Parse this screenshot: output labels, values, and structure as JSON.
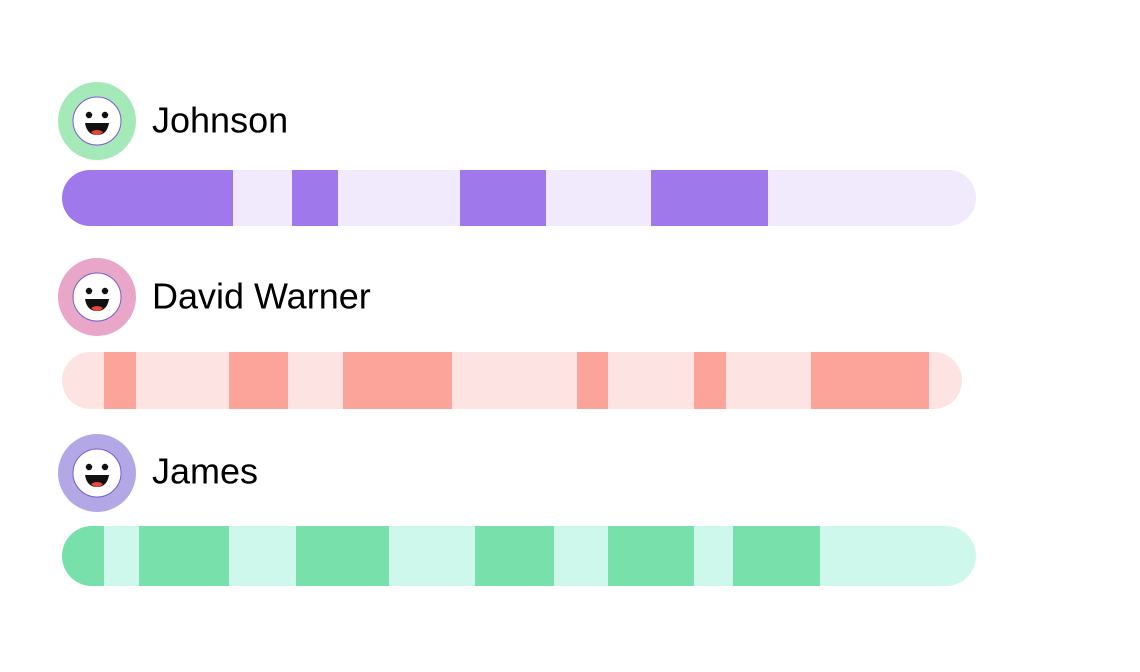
{
  "users": [
    {
      "name": "Johnson"
    },
    {
      "name": "David Warner"
    },
    {
      "name": "James"
    }
  ]
}
